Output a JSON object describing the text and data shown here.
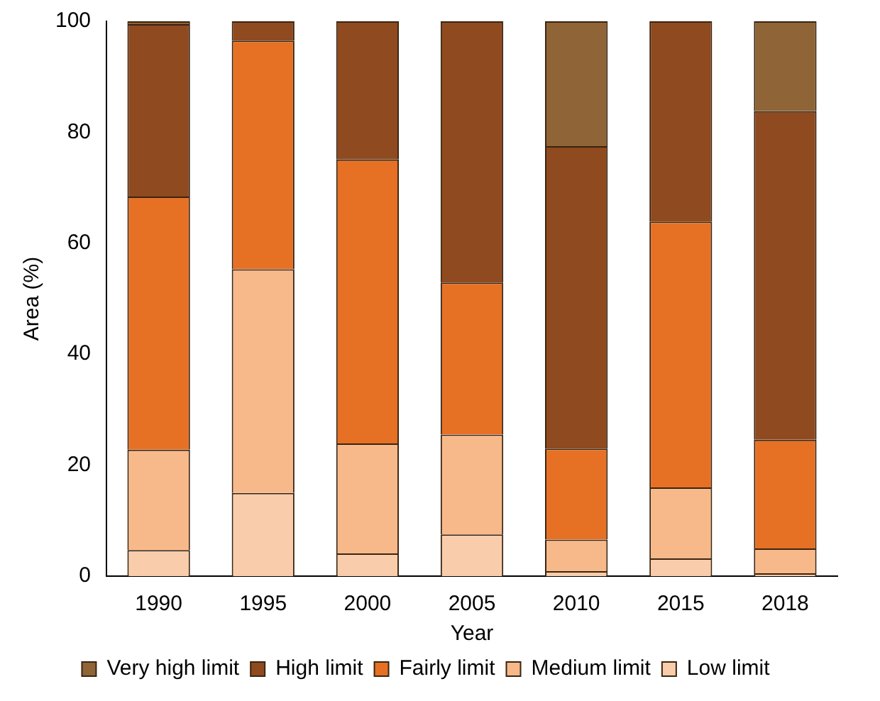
{
  "chart_data": {
    "type": "bar",
    "stacked": true,
    "xlabel": "Year",
    "ylabel": "Area (%)",
    "categories": [
      "1990",
      "1995",
      "2000",
      "2005",
      "2010",
      "2015",
      "2018"
    ],
    "series": [
      {
        "name": "Low limit",
        "color": "#f9cdab",
        "values": [
          4.7,
          15.0,
          4.1,
          7.5,
          0.9,
          3.2,
          0.5
        ]
      },
      {
        "name": "Medium limit",
        "color": "#f8b98a",
        "values": [
          18.1,
          40.3,
          19.8,
          18.0,
          5.7,
          12.8,
          4.5
        ]
      },
      {
        "name": "Fairly limit",
        "color": "#e67125",
        "values": [
          45.6,
          41.2,
          51.2,
          27.4,
          16.4,
          47.9,
          19.6
        ]
      },
      {
        "name": "High limit",
        "color": "#8f4a1f",
        "values": [
          31.1,
          3.5,
          24.9,
          47.1,
          54.5,
          36.1,
          59.2
        ]
      },
      {
        "name": "Very high limit",
        "color": "#8f6436",
        "values": [
          0.5,
          0,
          0,
          0,
          22.5,
          0,
          16.2
        ]
      }
    ],
    "ylim": [
      0,
      100
    ],
    "yticks": [
      0,
      20,
      40,
      60,
      80,
      100
    ],
    "grid": false,
    "legend": "bottom"
  }
}
